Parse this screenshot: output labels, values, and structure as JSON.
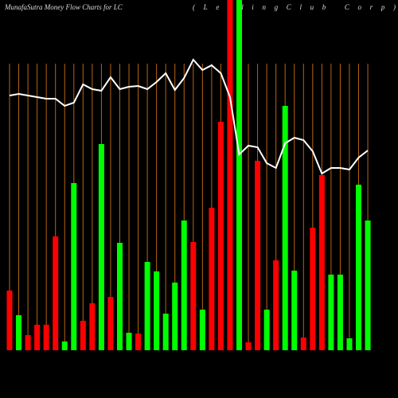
{
  "chart_data": {
    "type": "bar",
    "title": "MunafaSutra  Money Flow  Charts for LC",
    "subtitle": "(LendingClub Corp)",
    "ylim": [
      0,
      440
    ],
    "background": "#000000",
    "separator_color": "#b8650f",
    "bars": {
      "values": [
        75,
        44,
        19,
        32,
        32,
        143,
        11,
        210,
        37,
        59,
        259,
        67,
        135,
        22,
        21,
        111,
        99,
        46,
        85,
        163,
        136,
        51,
        179,
        287,
        440,
        440,
        10,
        238,
        51,
        113,
        307,
        100,
        16,
        154,
        220,
        95,
        95,
        15,
        208,
        163
      ],
      "colors": [
        "#ff0000",
        "#00ff00",
        "#ff0000",
        "#ff0000",
        "#ff0000",
        "#ff0000",
        "#00ff00",
        "#00ff00",
        "#ff0000",
        "#ff0000",
        "#00ff00",
        "#ff0000",
        "#00ff00",
        "#00ff00",
        "#ff0000",
        "#00ff00",
        "#00ff00",
        "#00ff00",
        "#00ff00",
        "#00ff00",
        "#ff0000",
        "#00ff00",
        "#ff0000",
        "#ff0000",
        "#ff0000",
        "#00ff00",
        "#ff0000",
        "#ff0000",
        "#00ff00",
        "#ff0000",
        "#00ff00",
        "#00ff00",
        "#ff0000",
        "#ff0000",
        "#ff0000",
        "#00ff00",
        "#00ff00",
        "#00ff00",
        "#00ff00",
        "#00ff00"
      ]
    },
    "line": {
      "color": "#ffffff",
      "values": [
        320,
        322,
        320,
        318,
        316,
        316,
        307,
        311,
        334,
        328,
        326,
        343,
        328,
        331,
        332,
        328,
        337,
        348,
        327,
        342,
        365,
        352,
        358,
        348,
        318,
        246,
        257,
        255,
        235,
        229,
        260,
        267,
        264,
        250,
        222,
        229,
        229,
        227,
        242,
        251
      ]
    }
  }
}
